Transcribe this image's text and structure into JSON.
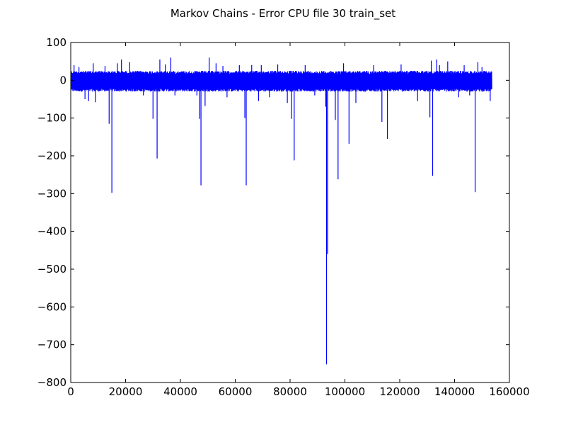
{
  "chart_data": {
    "type": "line",
    "title": "Markov Chains - Error CPU file 30 train_set",
    "xlabel": "",
    "ylabel": "",
    "xlim": [
      0,
      160000
    ],
    "ylim": [
      -800,
      100
    ],
    "xticks": [
      0,
      20000,
      40000,
      60000,
      80000,
      100000,
      120000,
      140000,
      160000
    ],
    "yticks": [
      100,
      0,
      -100,
      -200,
      -300,
      -400,
      -500,
      -600,
      -700,
      -800
    ],
    "grid": false,
    "series_color": "#0000ff",
    "x_extent": [
      0,
      153500
    ],
    "noise_band": [
      -30,
      25
    ],
    "spikes": [
      {
        "x": 1200,
        "y": 40
      },
      {
        "x": 3000,
        "y": 35
      },
      {
        "x": 5200,
        "y": -50
      },
      {
        "x": 6500,
        "y": -55
      },
      {
        "x": 8200,
        "y": 45
      },
      {
        "x": 9000,
        "y": -58
      },
      {
        "x": 12500,
        "y": 38
      },
      {
        "x": 14000,
        "y": -115
      },
      {
        "x": 15000,
        "y": -298
      },
      {
        "x": 17000,
        "y": 45
      },
      {
        "x": 18500,
        "y": 55
      },
      {
        "x": 21500,
        "y": 48
      },
      {
        "x": 26500,
        "y": -40
      },
      {
        "x": 30000,
        "y": -102
      },
      {
        "x": 31500,
        "y": -207
      },
      {
        "x": 32500,
        "y": 55
      },
      {
        "x": 34500,
        "y": 42
      },
      {
        "x": 36500,
        "y": 60
      },
      {
        "x": 38000,
        "y": -40
      },
      {
        "x": 46000,
        "y": -40
      },
      {
        "x": 47000,
        "y": -102
      },
      {
        "x": 47500,
        "y": -278
      },
      {
        "x": 49000,
        "y": -68
      },
      {
        "x": 50500,
        "y": 60
      },
      {
        "x": 53000,
        "y": 45
      },
      {
        "x": 55500,
        "y": 38
      },
      {
        "x": 57000,
        "y": -45
      },
      {
        "x": 61500,
        "y": 40
      },
      {
        "x": 63500,
        "y": -100
      },
      {
        "x": 64000,
        "y": -278
      },
      {
        "x": 66000,
        "y": 40
      },
      {
        "x": 68500,
        "y": -55
      },
      {
        "x": 69500,
        "y": 40
      },
      {
        "x": 72500,
        "y": -45
      },
      {
        "x": 75500,
        "y": 42
      },
      {
        "x": 79000,
        "y": -60
      },
      {
        "x": 80500,
        "y": -102
      },
      {
        "x": 81500,
        "y": -212
      },
      {
        "x": 85500,
        "y": 40
      },
      {
        "x": 89000,
        "y": -40
      },
      {
        "x": 93000,
        "y": -70
      },
      {
        "x": 93300,
        "y": -752
      },
      {
        "x": 93700,
        "y": -460
      },
      {
        "x": 96500,
        "y": -105
      },
      {
        "x": 97500,
        "y": -262
      },
      {
        "x": 99500,
        "y": 45
      },
      {
        "x": 101500,
        "y": -168
      },
      {
        "x": 104000,
        "y": -60
      },
      {
        "x": 110500,
        "y": 40
      },
      {
        "x": 113500,
        "y": -110
      },
      {
        "x": 115500,
        "y": -155
      },
      {
        "x": 120500,
        "y": 42
      },
      {
        "x": 126500,
        "y": -55
      },
      {
        "x": 131000,
        "y": -98
      },
      {
        "x": 131500,
        "y": 52
      },
      {
        "x": 132000,
        "y": -253
      },
      {
        "x": 133500,
        "y": 55
      },
      {
        "x": 134500,
        "y": 40
      },
      {
        "x": 137500,
        "y": 50
      },
      {
        "x": 141500,
        "y": -45
      },
      {
        "x": 143500,
        "y": 40
      },
      {
        "x": 145500,
        "y": -40
      },
      {
        "x": 147500,
        "y": -296
      },
      {
        "x": 148500,
        "y": 48
      },
      {
        "x": 150000,
        "y": 35
      },
      {
        "x": 153000,
        "y": -55
      }
    ]
  }
}
